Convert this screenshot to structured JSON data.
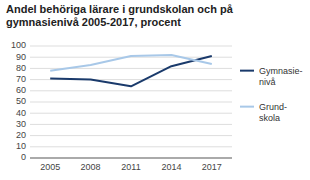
{
  "chart_data": {
    "type": "line",
    "title": "Andel behöriga lärare i grundskolan och på\ngymnasienivå 2005-2017, procent",
    "x": [
      2005,
      2008,
      2011,
      2014,
      2017
    ],
    "series": [
      {
        "name": "Gymnasie-\nnivå",
        "color": "#1a3a6b",
        "values": [
          71,
          70,
          64,
          82,
          91
        ]
      },
      {
        "name": "Grund-\nskola",
        "color": "#a8c8e8",
        "values": [
          78,
          83,
          91,
          92,
          84
        ]
      }
    ],
    "xlim": [
      2003.5,
      2018.5
    ],
    "xticks": [
      2005,
      2008,
      2011,
      2014,
      2017
    ],
    "ylim": [
      0,
      100
    ],
    "yticks": [
      0,
      10,
      20,
      30,
      40,
      50,
      60,
      70,
      80,
      90,
      100
    ],
    "grid": true,
    "legend": "right"
  }
}
